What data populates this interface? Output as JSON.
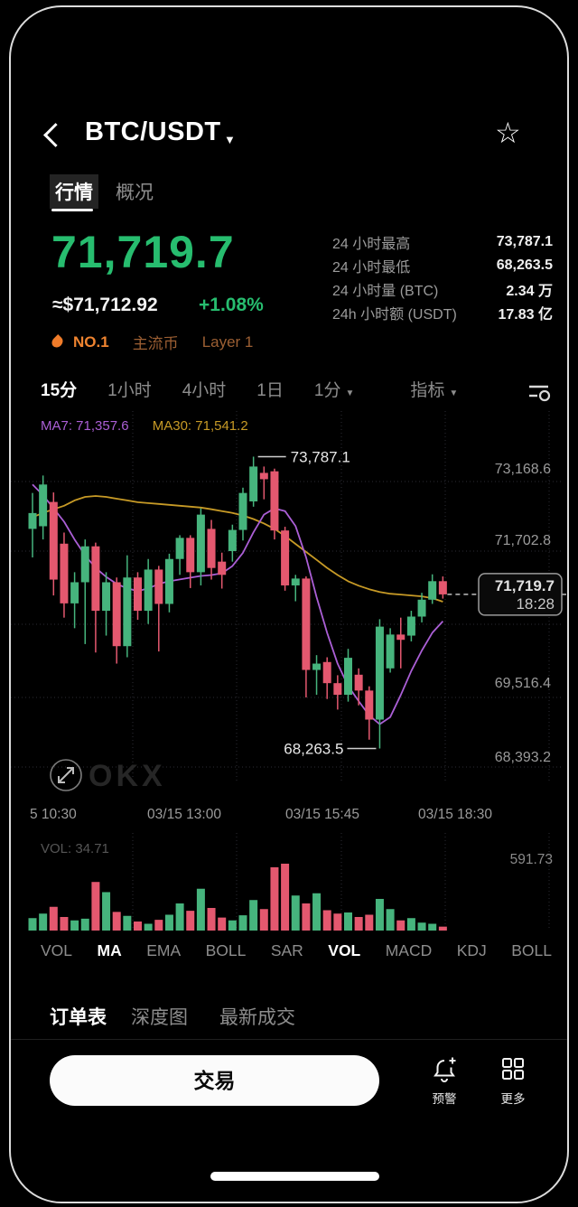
{
  "header": {
    "title": "BTC/USDT",
    "favorite_icon": "star-outline"
  },
  "tabs": [
    {
      "label": "行情",
      "active": true
    },
    {
      "label": "概况",
      "active": false
    }
  ],
  "price": {
    "value": "71,719.7",
    "usd": "≈$71,712.92",
    "change": "+1.08%",
    "up_color": "#27bd6f"
  },
  "stats": {
    "rows": [
      {
        "label": "24 小时最高",
        "value": "73,787.1"
      },
      {
        "label": "24 小时最低",
        "value": "68,263.5"
      },
      {
        "label": "24 小时量 (BTC)",
        "value": "2.34 万"
      },
      {
        "label": "24h 小时额 (USDT)",
        "value": "17.83 亿"
      }
    ]
  },
  "badges": {
    "rank": "NO.1",
    "tags": [
      "主流币",
      "Layer 1"
    ]
  },
  "timeframes": {
    "items": [
      {
        "label": "15分",
        "active": true
      },
      {
        "label": "1小时",
        "active": false
      },
      {
        "label": "4小时",
        "active": false
      },
      {
        "label": "1日",
        "active": false
      }
    ],
    "dropdown": "1分",
    "indicator_menu": "指标"
  },
  "chart_data": {
    "type": "candlestick",
    "timeframe": "15m",
    "ma7": {
      "label": "MA7: 71,357.6",
      "color": "#ab5fd6",
      "values": [
        73261,
        73060,
        72808,
        72555,
        72219,
        71917,
        71681,
        71513,
        71378,
        71294,
        71244,
        71294,
        71378,
        71429,
        71462,
        71496,
        71529,
        71547,
        71580,
        71715,
        71967,
        72354,
        72690,
        72808,
        72757,
        72471,
        71883,
        71126,
        70454,
        69866,
        69446,
        69160,
        68891,
        68723,
        68858,
        69278,
        69731,
        70118,
        70454,
        70673
      ]
    },
    "ma30": {
      "label": "MA30: 71,541.2",
      "color": "#c79a26",
      "values": [
        72639,
        72723,
        72791,
        72858,
        72959,
        73026,
        73043,
        73026,
        72992,
        72959,
        72925,
        72908,
        72892,
        72875,
        72858,
        72841,
        72824,
        72791,
        72757,
        72723,
        72673,
        72606,
        72522,
        72421,
        72287,
        72135,
        71984,
        71833,
        71681,
        71547,
        71429,
        71345,
        71278,
        71227,
        71193,
        71177,
        71160,
        71143,
        71109,
        71042
      ]
    },
    "candles_ohlc": [
      [
        72420,
        73100,
        71880,
        72720
      ],
      [
        72470,
        73430,
        72220,
        73260
      ],
      [
        72930,
        73110,
        71160,
        71460
      ],
      [
        72140,
        72350,
        70740,
        71010
      ],
      [
        71010,
        71600,
        70540,
        71410
      ],
      [
        71410,
        72220,
        70240,
        72090
      ],
      [
        72090,
        72160,
        70080,
        70870
      ],
      [
        70870,
        71600,
        70400,
        71410
      ],
      [
        71410,
        71500,
        69870,
        70200
      ],
      [
        70200,
        71920,
        69990,
        71500
      ],
      [
        71500,
        71600,
        70700,
        70870
      ],
      [
        70870,
        71850,
        70620,
        71650
      ],
      [
        71650,
        71720,
        70100,
        71000
      ],
      [
        71000,
        71950,
        70840,
        71850
      ],
      [
        71850,
        72300,
        71550,
        72250
      ],
      [
        72250,
        72300,
        71300,
        71600
      ],
      [
        71600,
        72810,
        71350,
        72690
      ],
      [
        72420,
        72590,
        71460,
        71680
      ],
      [
        71800,
        71970,
        71290,
        71550
      ],
      [
        72000,
        72500,
        71800,
        72400
      ],
      [
        72400,
        73200,
        72200,
        73100
      ],
      [
        72940,
        73787.1,
        72840,
        73600
      ],
      [
        73480,
        73600,
        72980,
        73360
      ],
      [
        73510,
        73560,
        72220,
        72390
      ],
      [
        72390,
        72460,
        71250,
        71350
      ],
      [
        71350,
        71550,
        71050,
        71480
      ],
      [
        71480,
        71520,
        69230,
        69750
      ],
      [
        69750,
        70030,
        69280,
        69870
      ],
      [
        69900,
        69990,
        69200,
        69500
      ],
      [
        69500,
        69650,
        69000,
        69280
      ],
      [
        69280,
        70150,
        69150,
        69980
      ],
      [
        69660,
        69780,
        69080,
        69360
      ],
      [
        69360,
        69440,
        68430,
        68810
      ],
      [
        68810,
        70710,
        68263.5,
        70570
      ],
      [
        69780,
        70540,
        69700,
        70420
      ],
      [
        70420,
        70740,
        69780,
        70320
      ],
      [
        70400,
        70870,
        70290,
        70760
      ],
      [
        70760,
        71210,
        70650,
        71080
      ],
      [
        71080,
        71560,
        71000,
        71430
      ],
      [
        71430,
        71520,
        71100,
        71180
      ]
    ],
    "volumes": [
      110,
      150,
      210,
      120,
      90,
      105,
      430,
      340,
      165,
      130,
      80,
      60,
      95,
      140,
      240,
      175,
      370,
      200,
      115,
      90,
      135,
      270,
      190,
      560,
      591.7,
      310,
      240,
      330,
      180,
      150,
      160,
      120,
      140,
      280,
      190,
      90,
      110,
      70,
      60,
      34.7
    ],
    "volume_header": "VOL: 34.71",
    "volume_axis_max": "591.73",
    "y_axis_labels": [
      "73,168.6",
      "71,702.8",
      "69,516.4",
      "68,393.2"
    ],
    "x_labels": [
      "5 10:30",
      "03/15 13:00",
      "03/15 15:45",
      "03/15 18:30"
    ],
    "annotations": {
      "high": {
        "text": "73,787.1",
        "candle_index": 21
      },
      "low": {
        "text": "68,263.5",
        "candle_index": 33
      },
      "current": {
        "price": "71,719.7",
        "time": "18:28"
      }
    },
    "colors": {
      "up": "#46b47d",
      "down": "#e4586f",
      "grid": "#2b2b33",
      "axis_text": "#9b9b9b"
    },
    "watermark": "OKX"
  },
  "indicators": {
    "items": [
      {
        "label": "VOL",
        "active": false
      },
      {
        "label": "MA",
        "active": true
      },
      {
        "label": "EMA",
        "active": false
      },
      {
        "label": "BOLL",
        "active": false
      },
      {
        "label": "SAR",
        "active": false
      },
      {
        "label": "VOL",
        "active": true
      },
      {
        "label": "MACD",
        "active": false
      },
      {
        "label": "KDJ",
        "active": false
      },
      {
        "label": "BOLL",
        "active": false
      }
    ]
  },
  "bottom_tabs": [
    {
      "label": "订单表",
      "active": true
    },
    {
      "label": "深度图",
      "active": false
    },
    {
      "label": "最新成交",
      "active": false
    }
  ],
  "actions": {
    "trade": "交易",
    "alert": "预警",
    "more": "更多"
  }
}
